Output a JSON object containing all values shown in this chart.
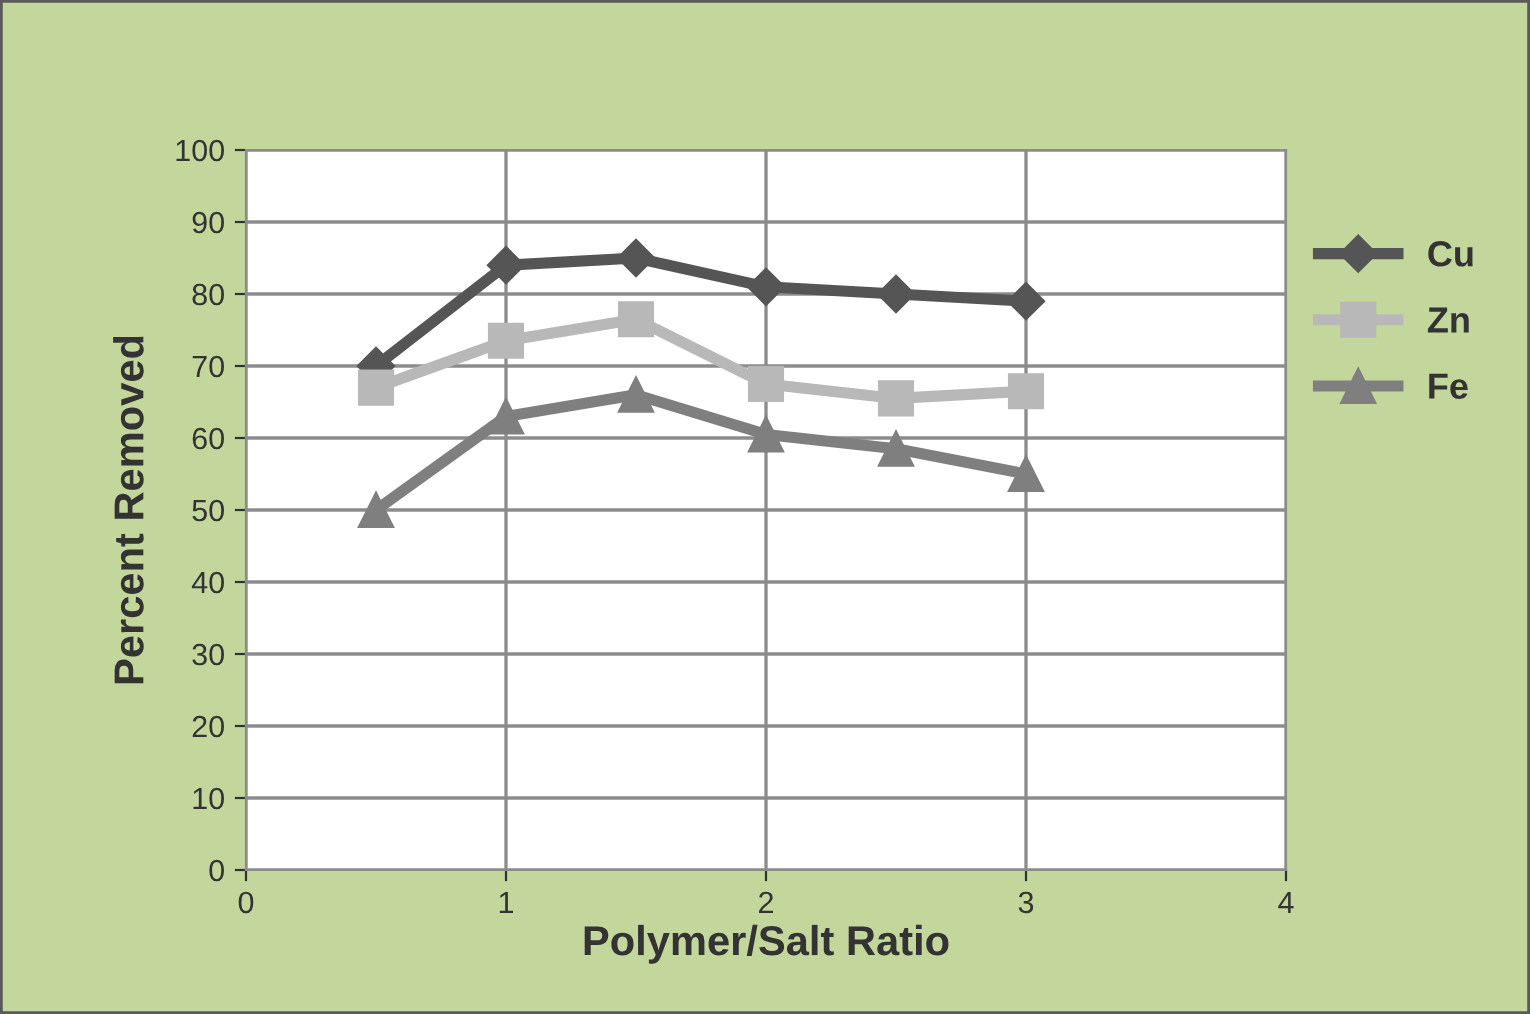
{
  "chart_data": {
    "type": "line",
    "xlabel": "Polymer/Salt Ratio",
    "ylabel": "Percent Removed",
    "x": [
      0.5,
      1,
      1.5,
      2,
      2.5,
      3
    ],
    "series": [
      {
        "name": "Cu",
        "color": "#555555",
        "marker": "diamond",
        "values": [
          70,
          84,
          85,
          81,
          80,
          79
        ]
      },
      {
        "name": "Zn",
        "color": "#b8b8b8",
        "marker": "square",
        "values": [
          67,
          73.5,
          76.5,
          67.5,
          65.5,
          66.5
        ]
      },
      {
        "name": "Fe",
        "color": "#7f7f7f",
        "marker": "triangle",
        "values": [
          50,
          63,
          66,
          60.5,
          58.5,
          55
        ]
      }
    ],
    "xlim": [
      0,
      4
    ],
    "xticks": [
      0,
      1,
      2,
      3,
      4
    ],
    "ylim": [
      0,
      100
    ],
    "yticks": [
      0,
      10,
      20,
      30,
      40,
      50,
      60,
      70,
      80,
      90,
      100
    ],
    "grid": true,
    "legend": "right"
  }
}
